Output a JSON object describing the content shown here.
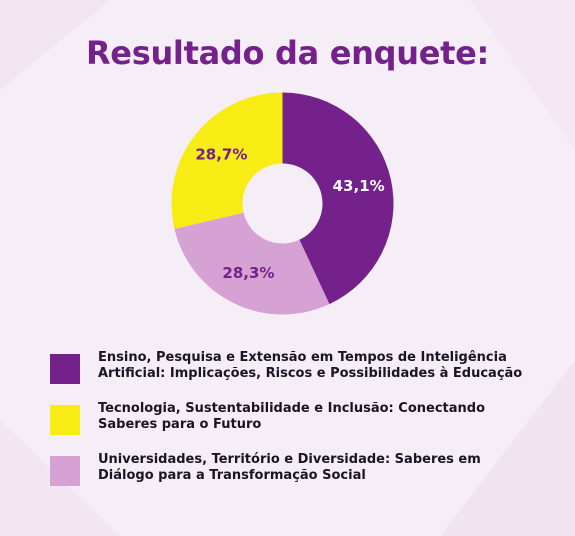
{
  "title": "Resultado da enquete:",
  "colors": {
    "purple": "#74218c",
    "yellow": "#f7ec13",
    "lilac": "#d6a2d4",
    "label_purple": "#74218c",
    "label_white": "#ffffff"
  },
  "chart_data": {
    "type": "pie",
    "donut": true,
    "title": "Resultado da enquete:",
    "series": [
      {
        "name": "Ensino, Pesquisa e Extensão em Tempos de Inteligência Artificial: Implicações, Riscos e Possibilidades à Educação",
        "value": 43.1,
        "label": "43,1%",
        "color": "#74218c"
      },
      {
        "name": "Universidades, Território e Diversidade: Saberes em Diálogo para a Transformação Social",
        "value": 28.3,
        "label": "28,3%",
        "color": "#d6a2d4"
      },
      {
        "name": "Tecnologia, Sustentabilidade e Inclusão: Conectando Saberes para o Futuro",
        "value": 28.7,
        "label": "28,7%",
        "color": "#f7ec13"
      }
    ],
    "legend": [
      {
        "line1": "Ensino, Pesquisa e Extensão em Tempos de Inteligência",
        "line2": "Artificial: Implicações, Riscos e Possibilidades à Educação",
        "color": "#74218c"
      },
      {
        "line1": "Tecnologia, Sustentabilidade e Inclusão: Conectando",
        "line2": "Saberes para o Futuro",
        "color": "#f7ec13"
      },
      {
        "line1": "Universidades, Território e Diversidade: Saberes em",
        "line2": "Diálogo para a Transformação Social",
        "color": "#d6a2d4"
      }
    ],
    "legend_position": "bottom"
  }
}
